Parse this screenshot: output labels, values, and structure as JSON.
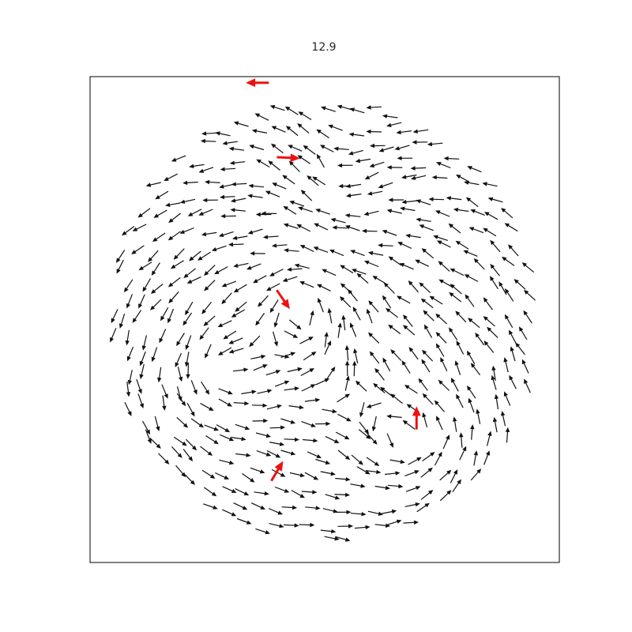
{
  "chart_data": {
    "type": "quiver",
    "title": "12.9",
    "xlim": [
      -1.2,
      1.2
    ],
    "ylim": [
      -1.2,
      1.2
    ],
    "grid": false,
    "axes_visible": false,
    "colors": {
      "normal": "#111111",
      "highlight": "#ee1111"
    },
    "vortices": [
      {
        "x": -0.1,
        "y": 0.1,
        "strength": 1.0
      },
      {
        "x": 0.45,
        "y": -0.6,
        "strength": 0.8
      },
      {
        "x": 0.05,
        "y": 0.6,
        "strength": -0.6
      },
      {
        "x": -0.55,
        "y": -0.25,
        "strength": 0.7
      }
    ],
    "disk_radius": 1.1,
    "highlights": [
      {
        "x": -0.33,
        "y": 1.17,
        "dx": -1.0,
        "dy": 0.0
      },
      {
        "x": -0.2,
        "y": 0.8,
        "dx": 1.0,
        "dy": -0.05
      },
      {
        "x": -0.22,
        "y": 0.11,
        "dx": 0.55,
        "dy": -0.8
      },
      {
        "x": -0.25,
        "y": -0.76,
        "dx": 0.5,
        "dy": 0.85
      },
      {
        "x": 0.47,
        "y": -0.5,
        "dx": 0.0,
        "dy": 1.0
      }
    ]
  }
}
